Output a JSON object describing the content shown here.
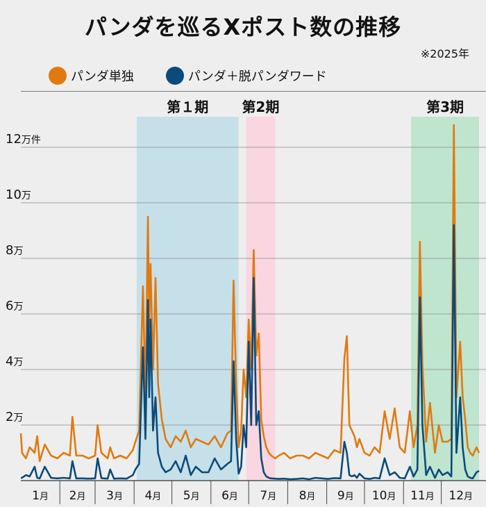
{
  "title": "パンダを巡るXポスト数の推移",
  "note": "※2025年",
  "legend": [
    {
      "label": "パンダ単独",
      "color": "#e07a10"
    },
    {
      "label": "パンダ＋脱パンダワード",
      "color": "#0b4a7a"
    }
  ],
  "chart_data": {
    "type": "line",
    "title": "パンダを巡るXポスト数の推移",
    "ylabel": "",
    "y_unit_label": "万件",
    "ylim": [
      0,
      130000
    ],
    "y_ticks": [
      {
        "value": 20000,
        "label": "2万"
      },
      {
        "value": 40000,
        "label": "4万"
      },
      {
        "value": 60000,
        "label": "6万"
      },
      {
        "value": 80000,
        "label": "8万"
      },
      {
        "value": 100000,
        "label": "10万"
      },
      {
        "value": 120000,
        "label": "12万"
      }
    ],
    "x_months": [
      "1月",
      "2月",
      "3月",
      "4月",
      "5月",
      "6月",
      "7月",
      "8月",
      "9月",
      "10月",
      "11月",
      "12月"
    ],
    "periods": [
      {
        "label": "第１期",
        "start_day": 93,
        "end_day": 174,
        "color": "#c6e0ea"
      },
      {
        "label": "第2期",
        "start_day": 180,
        "end_day": 203,
        "color": "#f9d6e0"
      },
      {
        "label": "第3期",
        "start_day": 311,
        "end_day": 365,
        "color": "#bfe5cf"
      }
    ],
    "series": [
      {
        "name": "パンダ単独",
        "color": "#e07a10",
        "x_day": [
          1,
          2,
          5,
          8,
          12,
          14,
          16,
          20,
          25,
          30,
          35,
          40,
          42,
          45,
          50,
          55,
          60,
          62,
          65,
          70,
          72,
          75,
          80,
          85,
          90,
          92,
          95,
          98,
          100,
          102,
          103,
          104,
          106,
          108,
          110,
          113,
          116,
          120,
          124,
          128,
          132,
          136,
          140,
          145,
          150,
          155,
          160,
          165,
          168,
          170,
          172,
          174,
          176,
          178,
          180,
          182,
          184,
          186,
          188,
          190,
          192,
          194,
          196,
          198,
          200,
          203,
          206,
          210,
          215,
          220,
          225,
          230,
          235,
          240,
          245,
          250,
          255,
          258,
          260,
          262,
          264,
          266,
          268,
          270,
          274,
          278,
          282,
          286,
          290,
          294,
          298,
          302,
          306,
          310,
          313,
          316,
          318,
          320,
          323,
          326,
          330,
          333,
          336,
          340,
          343,
          345,
          347,
          350,
          352,
          354,
          356,
          358,
          360,
          363,
          365
        ],
        "y": [
          17000,
          10000,
          8000,
          12000,
          10000,
          16000,
          7000,
          13000,
          9000,
          8000,
          10000,
          9000,
          23000,
          9000,
          9000,
          8000,
          9000,
          20000,
          10000,
          8000,
          12000,
          8000,
          9000,
          8000,
          11000,
          14000,
          18000,
          70000,
          30000,
          95000,
          55000,
          78000,
          40000,
          73000,
          35000,
          22000,
          15000,
          12000,
          16000,
          14000,
          18000,
          12000,
          15000,
          14000,
          13000,
          16000,
          12000,
          17000,
          18000,
          72000,
          35000,
          12000,
          18000,
          40000,
          30000,
          58000,
          40000,
          83000,
          45000,
          53000,
          22000,
          16000,
          12000,
          10000,
          9000,
          8000,
          9000,
          10000,
          8000,
          9000,
          9000,
          8000,
          10000,
          9000,
          8000,
          11000,
          10000,
          44000,
          52000,
          20000,
          18000,
          16000,
          12000,
          15000,
          10000,
          9000,
          12000,
          10000,
          25000,
          15000,
          26000,
          12000,
          10000,
          25000,
          12000,
          20000,
          86000,
          42000,
          14000,
          28000,
          10000,
          20000,
          14000,
          14000,
          15000,
          128000,
          30000,
          50000,
          30000,
          22000,
          12000,
          10000,
          9000,
          12000,
          10000
        ]
      },
      {
        "name": "パンダ＋脱パンダワード",
        "color": "#0b4a7a",
        "x_day": [
          1,
          2,
          5,
          8,
          12,
          14,
          16,
          20,
          25,
          30,
          35,
          40,
          42,
          45,
          50,
          55,
          60,
          62,
          65,
          70,
          72,
          75,
          80,
          85,
          90,
          92,
          95,
          98,
          100,
          102,
          103,
          104,
          106,
          108,
          110,
          113,
          116,
          120,
          124,
          128,
          132,
          136,
          140,
          145,
          150,
          155,
          160,
          165,
          168,
          170,
          172,
          174,
          176,
          178,
          180,
          182,
          184,
          186,
          188,
          190,
          192,
          194,
          196,
          198,
          200,
          203,
          206,
          210,
          215,
          220,
          225,
          230,
          235,
          240,
          245,
          250,
          255,
          258,
          260,
          262,
          264,
          266,
          268,
          270,
          274,
          278,
          282,
          286,
          290,
          294,
          298,
          302,
          306,
          310,
          313,
          316,
          318,
          320,
          323,
          326,
          330,
          333,
          336,
          340,
          343,
          345,
          347,
          350,
          352,
          354,
          356,
          358,
          360,
          363,
          365
        ],
        "y": [
          1000,
          1000,
          2000,
          1500,
          5000,
          1000,
          800,
          5000,
          1000,
          800,
          1000,
          800,
          7000,
          800,
          800,
          700,
          800,
          8000,
          900,
          700,
          4000,
          700,
          800,
          700,
          2000,
          4000,
          6000,
          48000,
          15000,
          65000,
          30000,
          58000,
          18000,
          30000,
          10000,
          5000,
          3000,
          4000,
          7000,
          3000,
          9000,
          2000,
          5000,
          3000,
          3000,
          8000,
          4000,
          6000,
          7000,
          43000,
          15000,
          2500,
          5000,
          20000,
          12000,
          50000,
          20000,
          73000,
          20000,
          25000,
          8000,
          3000,
          1500,
          1000,
          800,
          700,
          600,
          700,
          500,
          600,
          800,
          500,
          1000,
          800,
          600,
          900,
          800,
          14000,
          10000,
          2000,
          1500,
          2000,
          1000,
          2500,
          800,
          600,
          1000,
          800,
          8000,
          2000,
          3000,
          1000,
          800,
          5000,
          1500,
          4000,
          66000,
          20000,
          2000,
          5000,
          1000,
          4000,
          2000,
          3000,
          1500,
          92000,
          10000,
          30000,
          12000,
          4000,
          1500,
          1000,
          800,
          3000,
          3500
        ]
      }
    ]
  }
}
